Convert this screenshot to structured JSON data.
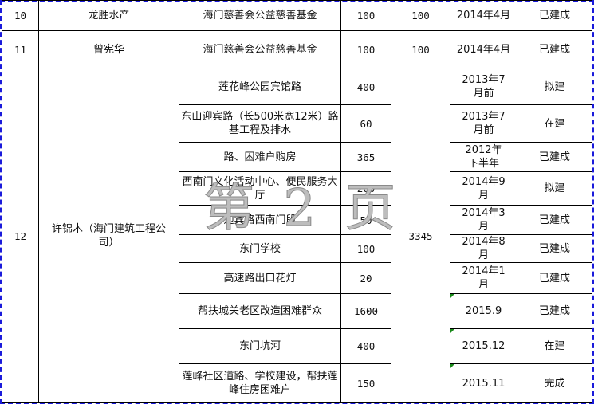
{
  "rows": [
    {
      "no": "10",
      "name": "龙胜水产",
      "project": "海门慈善会公益慈善基金",
      "amount": "100",
      "total": "100",
      "date": "2014年4月",
      "status": "已建成"
    },
    {
      "no": "11",
      "name": "曾宪华",
      "project": "海门慈善会公益慈善基金",
      "amount": "100",
      "total": "100",
      "date": "2014年4月",
      "status": "已建成"
    }
  ],
  "group": {
    "no": "12",
    "name": "许锦木（海门建筑工程公司）",
    "total": "3345",
    "items": [
      {
        "project": "莲花峰公园宾馆路",
        "amount": "400",
        "date": "2013年7月前",
        "status": "拟建"
      },
      {
        "project": "东山迎宾路（长500米宽12米）路基工程及排水",
        "amount": "60",
        "date": "2013年7月前",
        "status": "在建"
      },
      {
        "project": "路、困难户购房",
        "amount": "365",
        "date": "2012年下半年",
        "status": "已建成"
      },
      {
        "project": "西南门文化活动中心、便民服务大厅",
        "amount": "200",
        "date": "2014年9月",
        "status": "拟建"
      },
      {
        "project": "迎宾路西南门段",
        "amount": "50",
        "date": "2014年3月",
        "status": "已建成"
      },
      {
        "project": "东门学校",
        "amount": "100",
        "date": "2014年8月",
        "status": "已建成"
      },
      {
        "project": "高速路出口花灯",
        "amount": "20",
        "date": "2014年1月",
        "status": "已建成"
      },
      {
        "project": "帮扶城关老区改造困难群众",
        "amount": "1600",
        "date": "2015.9",
        "status": "已建成"
      },
      {
        "project": "东门坑河",
        "amount": "400",
        "date": "2015.12",
        "status": "在建"
      },
      {
        "project": "莲峰社区道路、学校建设，帮扶莲峰住房困难户",
        "amount": "150",
        "date": "2015.11",
        "status": "完成"
      }
    ]
  },
  "watermark": "第 2 页",
  "colors": {
    "page_border": "#1a1adb",
    "cell_marker": "#1a8a1a"
  }
}
